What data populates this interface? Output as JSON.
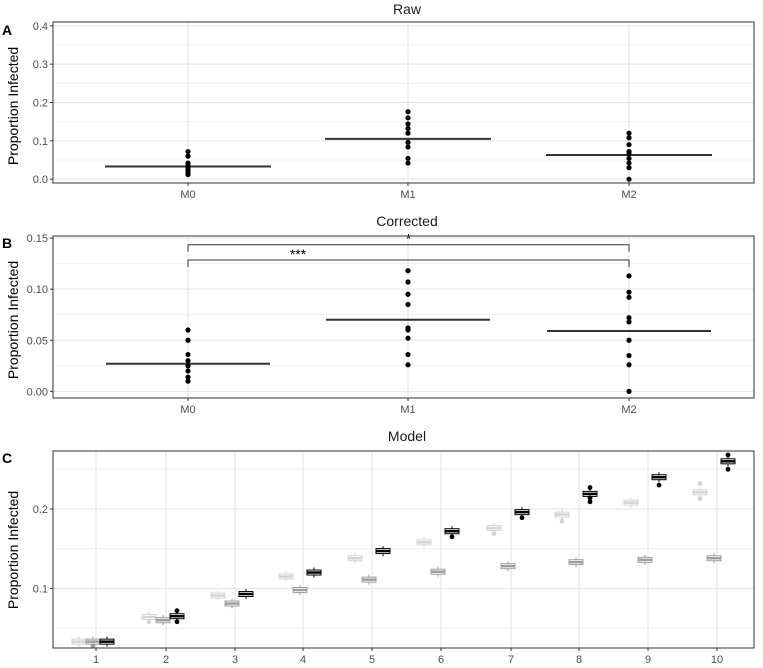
{
  "chart_data": [
    {
      "panel_label": "A",
      "title": "Raw",
      "type": "dotplot",
      "ylabel": "Proportion Infected",
      "xlabel": "",
      "categories": [
        "M0",
        "M1",
        "M2"
      ],
      "ylim": [
        -0.01,
        0.41
      ],
      "yticks": [
        0.0,
        0.1,
        0.2,
        0.3,
        0.4
      ],
      "ytick_labels": [
        "0.0",
        "0.1",
        "0.2",
        "0.3",
        "0.4"
      ],
      "grid": true,
      "series": [
        {
          "category": "M0",
          "points": [
            0.012,
            0.018,
            0.024,
            0.03,
            0.036,
            0.042,
            0.06,
            0.072
          ],
          "mean": 0.033
        },
        {
          "category": "M1",
          "points": [
            0.042,
            0.054,
            0.084,
            0.096,
            0.12,
            0.132,
            0.144,
            0.16,
            0.176
          ],
          "mean": 0.105
        },
        {
          "category": "M2",
          "points": [
            0.0,
            0.03,
            0.042,
            0.054,
            0.066,
            0.072,
            0.09,
            0.108,
            0.12
          ],
          "mean": 0.063
        }
      ]
    },
    {
      "panel_label": "B",
      "title": "Corrected",
      "type": "dotplot",
      "ylabel": "Proportion Infected",
      "xlabel": "",
      "categories": [
        "M0",
        "M1",
        "M2"
      ],
      "ylim": [
        -0.0065,
        0.152
      ],
      "yticks": [
        0.0,
        0.05,
        0.1,
        0.15
      ],
      "ytick_labels": [
        "0.00",
        "0.05",
        "0.10",
        "0.15"
      ],
      "grid": true,
      "series": [
        {
          "category": "M0",
          "points": [
            0.01,
            0.014,
            0.02,
            0.025,
            0.03,
            0.036,
            0.05,
            0.06
          ],
          "mean": 0.027
        },
        {
          "category": "M1",
          "points": [
            0.026,
            0.036,
            0.052,
            0.06,
            0.062,
            0.085,
            0.095,
            0.107,
            0.118
          ],
          "mean": 0.07
        },
        {
          "category": "M2",
          "points": [
            0.0,
            0.026,
            0.035,
            0.05,
            0.068,
            0.072,
            0.092,
            0.097,
            0.113
          ],
          "mean": 0.059
        }
      ],
      "annotations": [
        {
          "from": "M0",
          "to": "M2",
          "y": 0.1435,
          "label": "*"
        },
        {
          "from": "M0",
          "to": "M2",
          "y": 0.1285,
          "label": "***"
        }
      ]
    },
    {
      "panel_label": "C",
      "title": "Model",
      "type": "boxplot",
      "ylabel": "Proportion Infected",
      "xlabel": "",
      "categories": [
        "1",
        "2",
        "3",
        "4",
        "5",
        "6",
        "7",
        "8",
        "9",
        "10"
      ],
      "ylim": [
        0.025,
        0.273
      ],
      "yticks": [
        0.1,
        0.2
      ],
      "ytick_labels": [
        "0.1",
        "0.2"
      ],
      "grid": true,
      "series": [
        {
          "name": "light",
          "color": "#d4d4d4",
          "values": [
            0.033,
            0.064,
            0.091,
            0.115,
            0.138,
            0.158,
            0.176,
            0.193,
            0.208,
            0.221
          ],
          "outliers": [
            [],
            [
              0.058
            ],
            [],
            [],
            [],
            [],
            [
              0.169
            ],
            [
              0.185
            ],
            [],
            [
              0.213,
              0.232
            ]
          ]
        },
        {
          "name": "medium",
          "color": "#9e9e9e",
          "values": [
            0.033,
            0.06,
            0.081,
            0.098,
            0.111,
            0.121,
            0.128,
            0.133,
            0.136,
            0.138
          ],
          "outliers": [
            [
              0.028
            ],
            [],
            [],
            [],
            [],
            [],
            [],
            [],
            [],
            []
          ]
        },
        {
          "name": "dark",
          "color": "#000000",
          "values": [
            0.033,
            0.065,
            0.093,
            0.12,
            0.147,
            0.172,
            0.196,
            0.219,
            0.24,
            0.26
          ],
          "outliers": [
            [],
            [
              0.058,
              0.072
            ],
            [],
            [],
            [],
            [
              0.165
            ],
            [
              0.189
            ],
            [
              0.209,
              0.214,
              0.227
            ],
            [
              0.23
            ],
            [
              0.25,
              0.268
            ]
          ]
        }
      ]
    }
  ]
}
